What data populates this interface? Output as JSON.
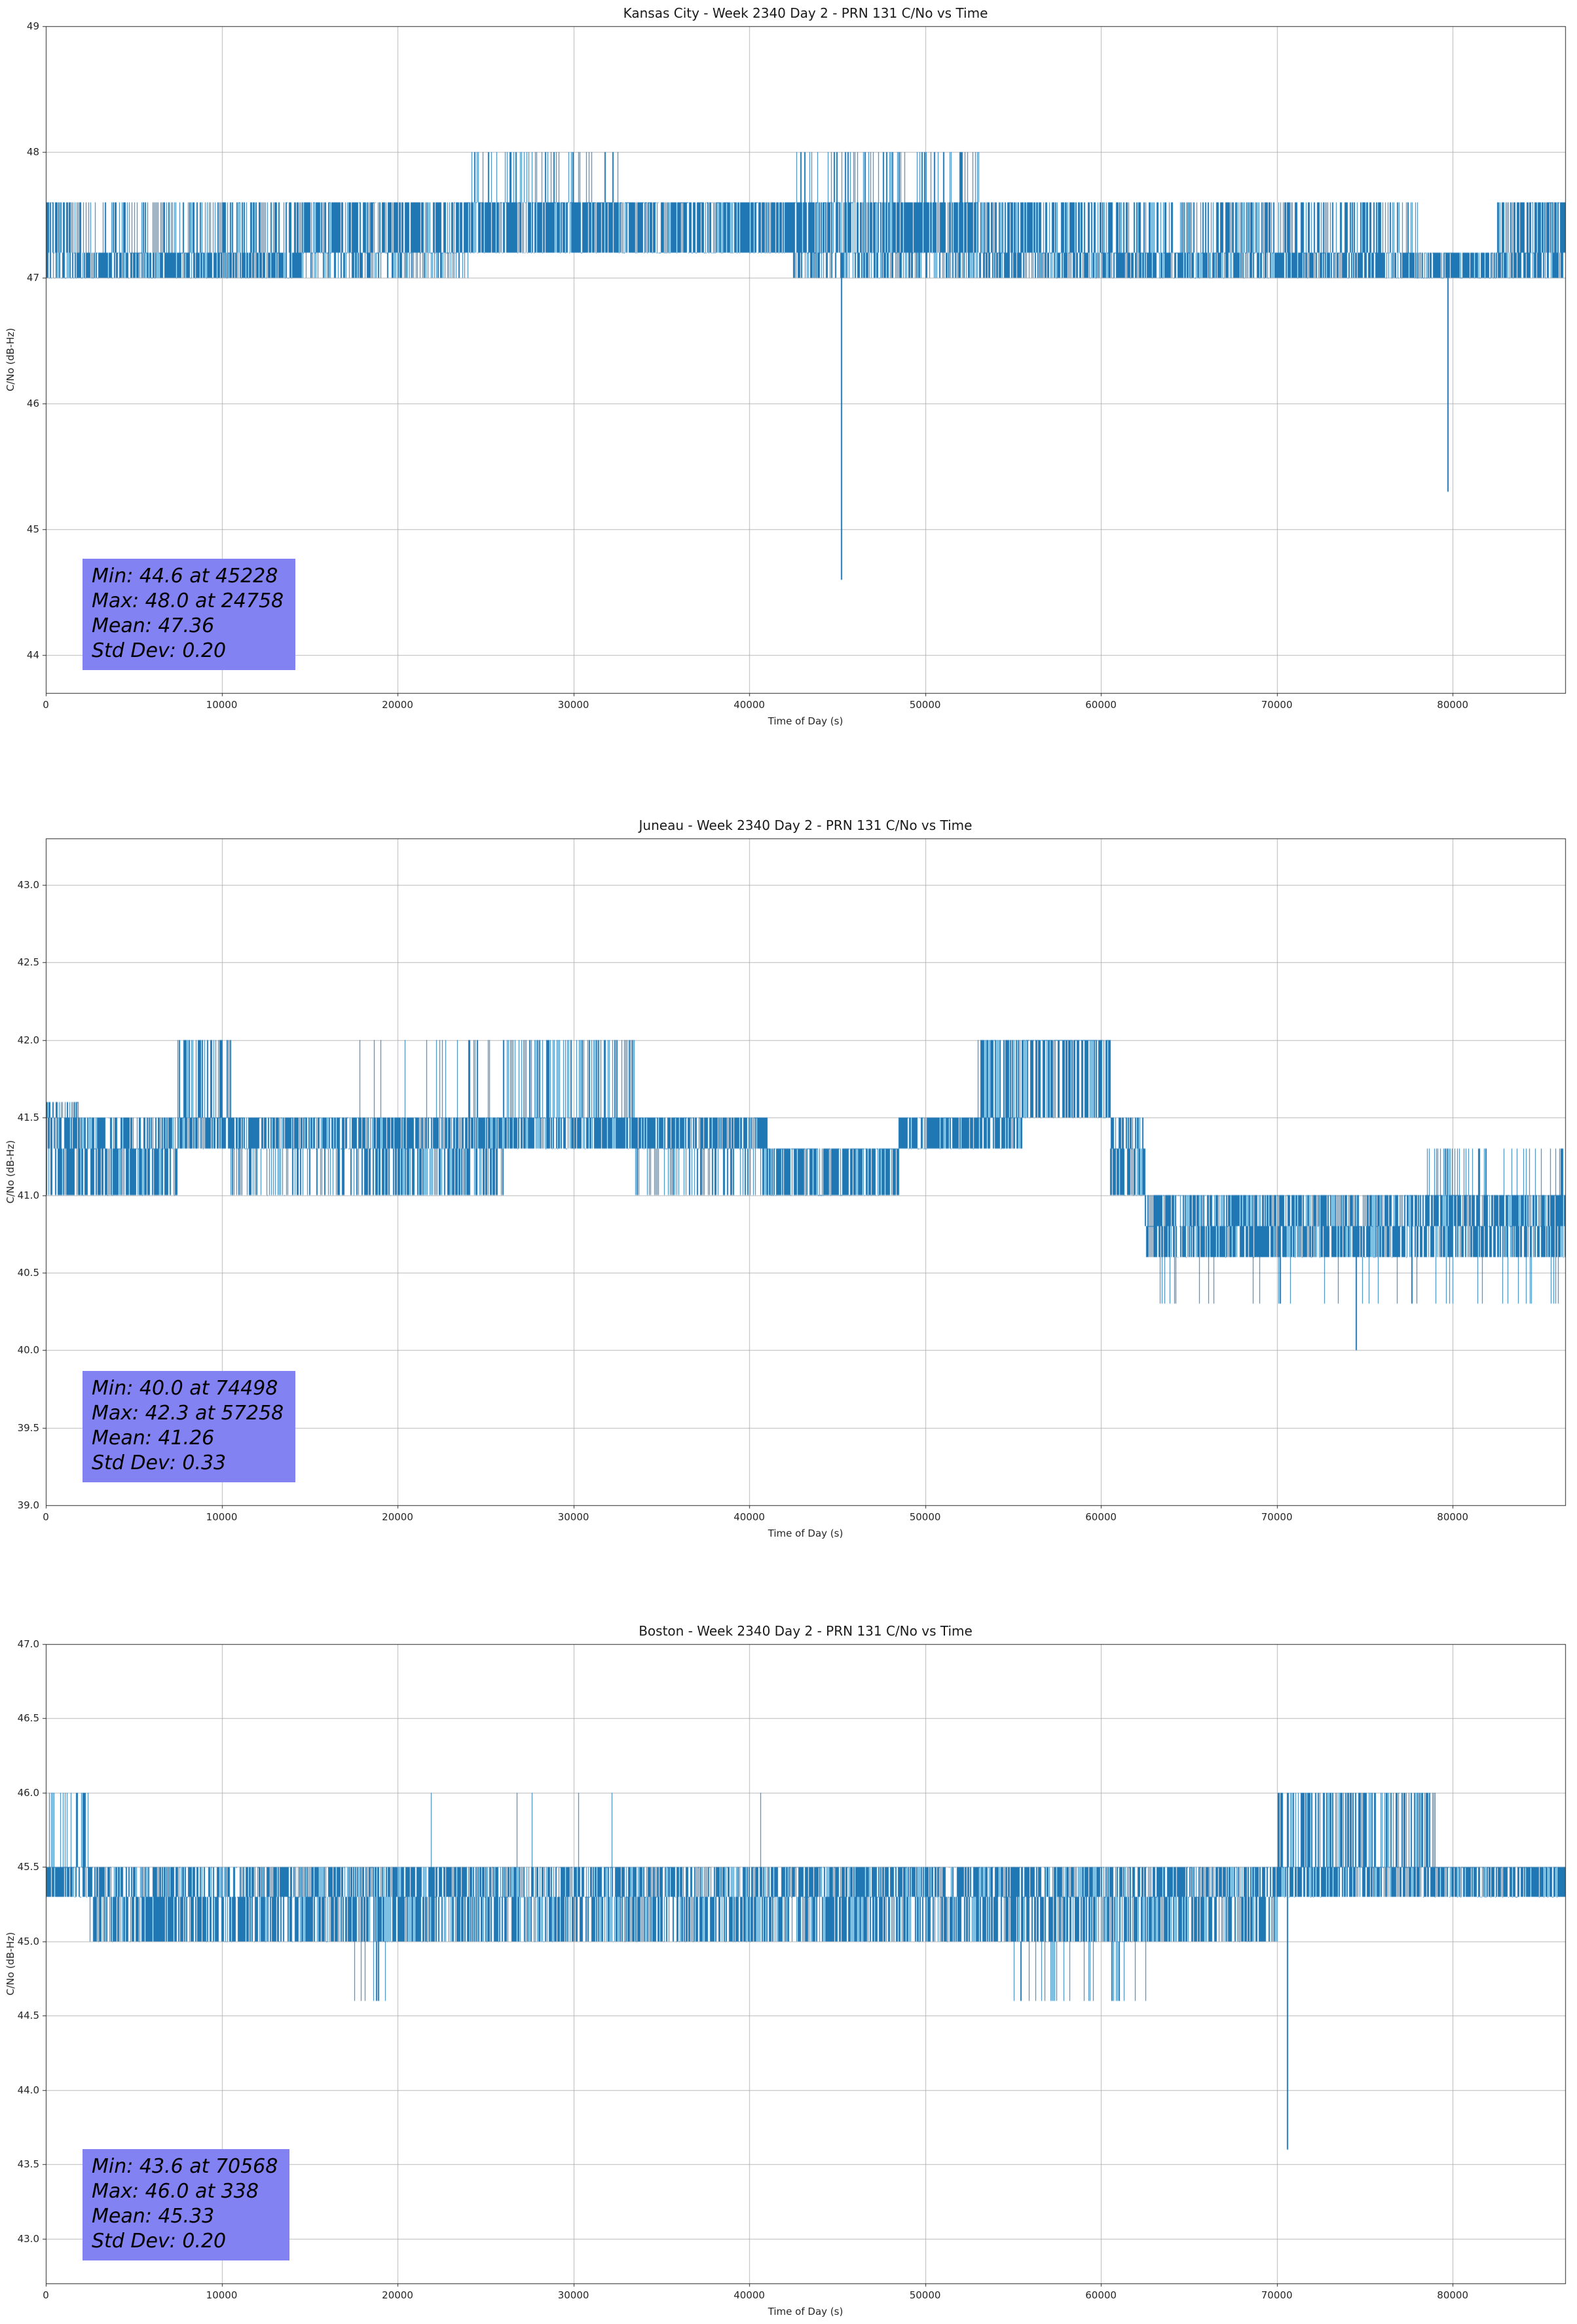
{
  "page": {
    "background": "#ffffff"
  },
  "chart_data": [
    {
      "type": "line",
      "title": "Kansas City - Week 2340 Day 2 - PRN 131 C/No vs Time",
      "xlabel": "Time of Day (s)",
      "ylabel": "C/No (dB-Hz)",
      "xlim": [
        0,
        86400
      ],
      "ylim": [
        43.7,
        49.0
      ],
      "xticks": [
        0,
        10000,
        20000,
        30000,
        40000,
        50000,
        60000,
        70000,
        80000
      ],
      "xtick_labels": [
        "0",
        "10000",
        "20000",
        "30000",
        "40000",
        "50000",
        "60000",
        "70000",
        "80000"
      ],
      "yticks": [
        44,
        45,
        46,
        47,
        48,
        49
      ],
      "ytick_labels": [
        "44",
        "45",
        "46",
        "47",
        "48",
        "49"
      ],
      "grid": true,
      "legend": "none",
      "line_color": "#1f77b4",
      "annotation_bg": "#8282f2",
      "stats": {
        "min": 44.6,
        "min_time": 45228,
        "max": 48.0,
        "max_time": 24758,
        "mean": 47.36,
        "std_dev": 0.2
      },
      "stats_lines": [
        "Min: 44.6 at 45228",
        "Max: 48.0 at 24758",
        "Mean: 47.36",
        "Std Dev: 0.20"
      ],
      "series_model": {
        "segments": [
          {
            "t": [
              0,
              1200
            ],
            "levels": [
              47.0,
              47.2,
              47.6
            ],
            "weights": [
              0.35,
              0.35,
              0.3
            ]
          },
          {
            "t": [
              1200,
              14500
            ],
            "levels": [
              47.0,
              47.2,
              47.6
            ],
            "weights": [
              0.45,
              0.4,
              0.15
            ]
          },
          {
            "t": [
              14500,
              24000
            ],
            "levels": [
              47.0,
              47.2,
              47.6
            ],
            "weights": [
              0.15,
              0.5,
              0.35
            ]
          },
          {
            "t": [
              24000,
              32500
            ],
            "levels": [
              47.2,
              47.6,
              48.0
            ],
            "weights": [
              0.48,
              0.44,
              0.08
            ]
          },
          {
            "t": [
              32500,
              42500
            ],
            "levels": [
              47.2,
              47.6
            ],
            "weights": [
              0.58,
              0.42
            ]
          },
          {
            "t": [
              42500,
              53500
            ],
            "levels": [
              47.0,
              47.2,
              47.6,
              48.0
            ],
            "weights": [
              0.22,
              0.36,
              0.32,
              0.1
            ]
          },
          {
            "t": [
              53500,
              60500
            ],
            "levels": [
              47.0,
              47.2,
              47.6
            ],
            "weights": [
              0.3,
              0.45,
              0.25
            ]
          },
          {
            "t": [
              60500,
              78000
            ],
            "levels": [
              47.0,
              47.2,
              47.6
            ],
            "weights": [
              0.38,
              0.42,
              0.2
            ]
          },
          {
            "t": [
              78000,
              82500
            ],
            "levels": [
              47.0,
              47.2
            ],
            "weights": [
              0.6,
              0.4
            ]
          },
          {
            "t": [
              82500,
              86400
            ],
            "levels": [
              47.0,
              47.2,
              47.6
            ],
            "weights": [
              0.35,
              0.35,
              0.3
            ]
          }
        ],
        "events": [
          {
            "t": 45228,
            "v": 44.6,
            "from": 47.2
          },
          {
            "t": 79700,
            "v": 45.3,
            "from": 47.0
          }
        ]
      }
    },
    {
      "type": "line",
      "title": "Juneau - Week 2340 Day 2 - PRN 131 C/No vs Time",
      "xlabel": "Time of Day (s)",
      "ylabel": "C/No (dB-Hz)",
      "xlim": [
        0,
        86400
      ],
      "ylim": [
        39.0,
        43.3
      ],
      "xticks": [
        0,
        10000,
        20000,
        30000,
        40000,
        50000,
        60000,
        70000,
        80000
      ],
      "xtick_labels": [
        "0",
        "10000",
        "20000",
        "30000",
        "40000",
        "50000",
        "60000",
        "70000",
        "80000"
      ],
      "yticks": [
        39.0,
        39.5,
        40.0,
        40.5,
        41.0,
        41.5,
        42.0,
        42.5,
        43.0
      ],
      "ytick_labels": [
        "39.0",
        "39.5",
        "40.0",
        "40.5",
        "41.0",
        "41.5",
        "42.0",
        "42.5",
        "43.0"
      ],
      "grid": true,
      "legend": "none",
      "line_color": "#1f77b4",
      "annotation_bg": "#8282f2",
      "stats": {
        "min": 40.0,
        "min_time": 74498,
        "max": 42.3,
        "max_time": 57258,
        "mean": 41.26,
        "std_dev": 0.33
      },
      "stats_lines": [
        "Min: 40.0 at 74498",
        "Max: 42.3 at 57258",
        "Mean: 41.26",
        "Std Dev: 0.33"
      ],
      "series_model": {
        "segments": [
          {
            "t": [
              0,
              2000
            ],
            "levels": [
              41.0,
              41.3,
              41.5,
              41.6
            ],
            "weights": [
              0.3,
              0.3,
              0.2,
              0.2
            ]
          },
          {
            "t": [
              2000,
              7500
            ],
            "levels": [
              41.0,
              41.3,
              41.5
            ],
            "weights": [
              0.35,
              0.4,
              0.25
            ]
          },
          {
            "t": [
              7500,
              10500
            ],
            "levels": [
              41.3,
              41.5,
              42.0
            ],
            "weights": [
              0.35,
              0.45,
              0.2
            ]
          },
          {
            "t": [
              10500,
              17500
            ],
            "levels": [
              41.0,
              41.3,
              41.5
            ],
            "weights": [
              0.15,
              0.45,
              0.4
            ]
          },
          {
            "t": [
              17500,
              26000
            ],
            "levels": [
              41.0,
              41.3,
              41.5,
              42.0
            ],
            "weights": [
              0.25,
              0.37,
              0.36,
              0.02
            ]
          },
          {
            "t": [
              26000,
              33500
            ],
            "levels": [
              41.3,
              41.5,
              42.0
            ],
            "weights": [
              0.38,
              0.47,
              0.15
            ]
          },
          {
            "t": [
              33500,
              41000
            ],
            "levels": [
              41.0,
              41.3,
              41.5
            ],
            "weights": [
              0.15,
              0.45,
              0.4
            ]
          },
          {
            "t": [
              41000,
              48500
            ],
            "levels": [
              41.0,
              41.3
            ],
            "weights": [
              0.5,
              0.5
            ]
          },
          {
            "t": [
              48500,
              53000
            ],
            "levels": [
              41.3,
              41.5
            ],
            "weights": [
              0.55,
              0.45
            ]
          },
          {
            "t": [
              53000,
              55500
            ],
            "levels": [
              41.3,
              41.5,
              42.0,
              42.3
            ],
            "weights": [
              0.32,
              0.36,
              0.31,
              0.004
            ]
          },
          {
            "t": [
              55500,
              60500
            ],
            "levels": [
              41.5,
              42.0,
              42.3
            ],
            "weights": [
              0.4,
              0.6,
              0.008
            ]
          },
          {
            "t": [
              60500,
              62500
            ],
            "levels": [
              41.0,
              41.3,
              41.5
            ],
            "weights": [
              0.4,
              0.4,
              0.2
            ]
          },
          {
            "t": [
              62500,
              70500
            ],
            "levels": [
              40.3,
              40.6,
              40.8,
              41.0
            ],
            "weights": [
              0.02,
              0.36,
              0.31,
              0.31
            ]
          },
          {
            "t": [
              70500,
              78500
            ],
            "levels": [
              40.3,
              40.6,
              40.8,
              41.0
            ],
            "weights": [
              0.02,
              0.36,
              0.32,
              0.3
            ]
          },
          {
            "t": [
              78500,
              86400
            ],
            "levels": [
              40.3,
              40.6,
              40.8,
              41.0,
              41.3
            ],
            "weights": [
              0.02,
              0.3,
              0.28,
              0.31,
              0.07
            ]
          }
        ],
        "events": [
          {
            "t": 74498,
            "v": 40.0,
            "from": 40.8
          }
        ]
      }
    },
    {
      "type": "line",
      "title": "Boston - Week 2340 Day 2 - PRN 131 C/No vs Time",
      "xlabel": "Time of Day (s)",
      "ylabel": "C/No (dB-Hz)",
      "xlim": [
        0,
        86400
      ],
      "ylim": [
        42.7,
        47.0
      ],
      "xticks": [
        0,
        10000,
        20000,
        30000,
        40000,
        50000,
        60000,
        70000,
        80000
      ],
      "xtick_labels": [
        "0",
        "10000",
        "20000",
        "30000",
        "40000",
        "50000",
        "60000",
        "70000",
        "80000"
      ],
      "yticks": [
        43.0,
        43.5,
        44.0,
        44.5,
        45.0,
        45.5,
        46.0,
        46.5,
        47.0
      ],
      "ytick_labels": [
        "43.0",
        "43.5",
        "44.0",
        "44.5",
        "45.0",
        "45.5",
        "46.0",
        "46.5",
        "47.0"
      ],
      "grid": true,
      "legend": "none",
      "line_color": "#1f77b4",
      "annotation_bg": "#8282f2",
      "stats": {
        "min": 43.6,
        "min_time": 70568,
        "max": 46.0,
        "max_time": 338,
        "mean": 45.33,
        "std_dev": 0.2
      },
      "stats_lines": [
        "Min: 43.6 at 70568",
        "Max: 46.0 at 338",
        "Mean: 45.33",
        "Std Dev: 0.20"
      ],
      "series_model": {
        "segments": [
          {
            "t": [
              0,
              2500
            ],
            "levels": [
              45.3,
              45.5,
              46.0
            ],
            "weights": [
              0.4,
              0.48,
              0.12
            ]
          },
          {
            "t": [
              2500,
              17500
            ],
            "levels": [
              45.0,
              45.3,
              45.5
            ],
            "weights": [
              0.35,
              0.35,
              0.3
            ]
          },
          {
            "t": [
              17500,
              19500
            ],
            "levels": [
              44.6,
              45.0,
              45.3,
              45.5
            ],
            "weights": [
              0.05,
              0.35,
              0.33,
              0.27
            ]
          },
          {
            "t": [
              19500,
              42000
            ],
            "levels": [
              45.0,
              45.3,
              45.5,
              46.0
            ],
            "weights": [
              0.31,
              0.35,
              0.34,
              0.002
            ]
          },
          {
            "t": [
              42000,
              55000
            ],
            "levels": [
              45.0,
              45.3,
              45.5
            ],
            "weights": [
              0.32,
              0.35,
              0.33
            ]
          },
          {
            "t": [
              55000,
              63000
            ],
            "levels": [
              44.6,
              45.0,
              45.3,
              45.5
            ],
            "weights": [
              0.04,
              0.32,
              0.34,
              0.3
            ]
          },
          {
            "t": [
              63000,
              70000
            ],
            "levels": [
              45.0,
              45.3,
              45.5
            ],
            "weights": [
              0.3,
              0.35,
              0.35
            ]
          },
          {
            "t": [
              70000,
              79000
            ],
            "levels": [
              45.3,
              45.5,
              46.0
            ],
            "weights": [
              0.35,
              0.43,
              0.22
            ]
          },
          {
            "t": [
              79000,
              86400
            ],
            "levels": [
              45.3,
              45.5
            ],
            "weights": [
              0.45,
              0.55
            ]
          }
        ],
        "events": [
          {
            "t": 70568,
            "v": 43.6,
            "from": 45.3
          }
        ]
      }
    }
  ]
}
